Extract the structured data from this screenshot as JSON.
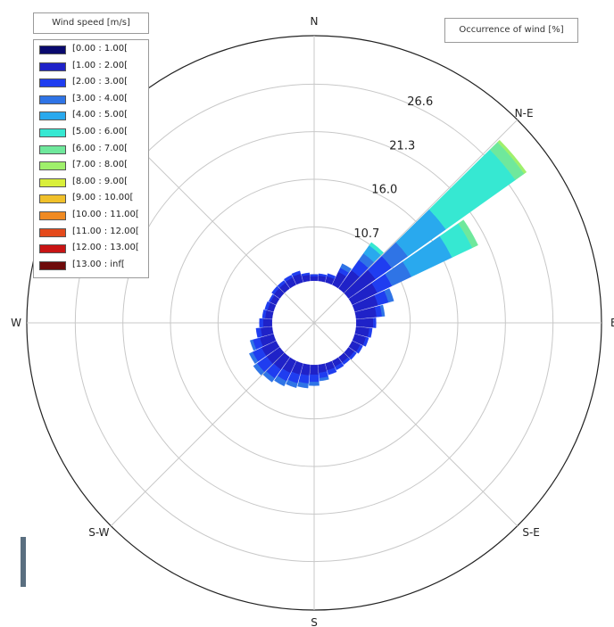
{
  "chart_data": {
    "type": "wind_rose",
    "legend_title": "Wind speed [m/s]",
    "radial_title": "Occurrence of wind [%]",
    "directions": [
      "N",
      "N-E",
      "E",
      "S-E",
      "S",
      "S-W",
      "W"
    ],
    "ring_labels": [
      "10.7",
      "16.0",
      "21.3",
      "26.6"
    ],
    "rmax": 32,
    "speed_bins": [
      {
        "label": "[0.00 : 1.00[",
        "color": "#0a0a6e"
      },
      {
        "label": "[1.00 : 2.00[",
        "color": "#1f22c8"
      },
      {
        "label": "[2.00 : 3.00[",
        "color": "#1f3df0"
      },
      {
        "label": "[3.00 : 4.00[",
        "color": "#2f74e6"
      },
      {
        "label": "[4.00 : 5.00[",
        "color": "#29a9ee"
      },
      {
        "label": "[5.00 : 6.00[",
        "color": "#36e8d2"
      },
      {
        "label": "[6.00 : 7.00[",
        "color": "#6fe89c"
      },
      {
        "label": "[7.00 : 8.00[",
        "color": "#9ff06b"
      },
      {
        "label": "[8.00 : 9.00[",
        "color": "#d9ef3a"
      },
      {
        "label": "[9.00 : 10.00[",
        "color": "#f0c02a"
      },
      {
        "label": "[10.00 : 11.00[",
        "color": "#f08a22"
      },
      {
        "label": "[11.00 : 12.00[",
        "color": "#e44a1c"
      },
      {
        "label": "[12.00 : 13.00[",
        "color": "#c81414"
      },
      {
        "label": "[13.00 : inf[",
        "color": "#6e0a0a"
      }
    ],
    "sectors": [
      {
        "angle": 0,
        "cum": [
          5.0,
          5.2,
          5.4
        ]
      },
      {
        "angle": 10,
        "cum": [
          5.0,
          5.3,
          5.5
        ]
      },
      {
        "angle": 20,
        "cum": [
          5.0,
          5.4,
          5.7
        ]
      },
      {
        "angle": 30,
        "cum": [
          5.0,
          6.3,
          6.8,
          7.3
        ]
      },
      {
        "angle": 40,
        "cum": [
          5.0,
          7.2,
          8.6,
          9.5,
          10.6,
          11.0
        ]
      },
      {
        "angle": 50,
        "cum": [
          5.0,
          8.4,
          10.6,
          12.8,
          18.0,
          27.5,
          28.7,
          29.0
        ]
      },
      {
        "angle": 60,
        "cum": [
          5.0,
          7.8,
          9.6,
          12.0,
          17.0,
          19.5,
          20.2
        ]
      },
      {
        "angle": 70,
        "cum": [
          5.0,
          7.4,
          8.6,
          9.2
        ]
      },
      {
        "angle": 80,
        "cum": [
          5.0,
          7.0,
          7.6,
          7.9
        ]
      },
      {
        "angle": 90,
        "cum": [
          5.0,
          6.6,
          6.9
        ]
      },
      {
        "angle": 100,
        "cum": [
          5.0,
          6.2,
          6.5
        ]
      },
      {
        "angle": 110,
        "cum": [
          5.0,
          6.0,
          6.3
        ]
      },
      {
        "angle": 120,
        "cum": [
          5.0,
          5.7,
          6.0
        ]
      },
      {
        "angle": 130,
        "cum": [
          5.0,
          5.5,
          5.8
        ]
      },
      {
        "angle": 140,
        "cum": [
          5.0,
          5.4,
          5.7
        ]
      },
      {
        "angle": 150,
        "cum": [
          5.0,
          5.4,
          5.8
        ]
      },
      {
        "angle": 160,
        "cum": [
          5.0,
          5.5,
          6.0
        ]
      },
      {
        "angle": 170,
        "cum": [
          5.0,
          5.6,
          6.2,
          6.5
        ]
      },
      {
        "angle": 180,
        "cum": [
          5.0,
          5.8,
          6.6,
          7.0
        ]
      },
      {
        "angle": 190,
        "cum": [
          5.0,
          5.9,
          6.8,
          7.3
        ]
      },
      {
        "angle": 200,
        "cum": [
          5.0,
          6.0,
          7.0,
          7.5
        ]
      },
      {
        "angle": 210,
        "cum": [
          5.0,
          6.2,
          7.2,
          7.8
        ]
      },
      {
        "angle": 220,
        "cum": [
          5.0,
          6.4,
          7.6,
          8.1
        ]
      },
      {
        "angle": 230,
        "cum": [
          5.0,
          6.5,
          7.8,
          8.3
        ]
      },
      {
        "angle": 240,
        "cum": [
          5.0,
          6.5,
          7.6,
          8.0
        ]
      },
      {
        "angle": 250,
        "cum": [
          5.0,
          6.3,
          7.1,
          7.4
        ]
      },
      {
        "angle": 260,
        "cum": [
          5.0,
          6.0,
          6.5
        ]
      },
      {
        "angle": 270,
        "cum": [
          5.0,
          5.7,
          6.1
        ]
      },
      {
        "angle": 280,
        "cum": [
          5.0,
          5.5,
          5.8
        ]
      },
      {
        "angle": 290,
        "cum": [
          5.0,
          5.4,
          5.7
        ]
      },
      {
        "angle": 300,
        "cum": [
          5.0,
          5.4,
          5.6
        ]
      },
      {
        "angle": 310,
        "cum": [
          5.0,
          5.5,
          5.8
        ]
      },
      {
        "angle": 320,
        "cum": [
          5.0,
          5.5,
          5.8
        ]
      },
      {
        "angle": 330,
        "cum": [
          5.0,
          5.6,
          5.9
        ]
      },
      {
        "angle": 340,
        "cum": [
          5.0,
          5.7,
          6.0
        ]
      },
      {
        "angle": 350,
        "cum": [
          5.0,
          5.4,
          5.6
        ]
      }
    ]
  }
}
